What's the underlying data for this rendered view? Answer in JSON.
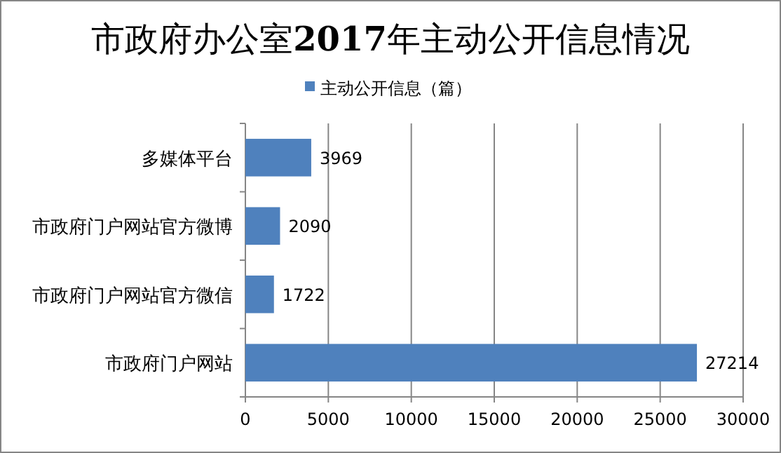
{
  "chart_data": {
    "type": "bar",
    "orientation": "horizontal",
    "title": "市政府办公室**2017**年主动公开信息情况",
    "categories": [
      "多媒体平台",
      "市政府门户网站官方微博",
      "市政府门户网站官方微信",
      "市政府门户网站"
    ],
    "series": [
      {
        "name": "主动公开信息（篇）",
        "color": "#4f81bd",
        "values": [
          3969,
          2090,
          1722,
          27214
        ]
      }
    ],
    "xlim": [
      0,
      30000
    ],
    "xticks": [
      0,
      5000,
      10000,
      15000,
      20000,
      25000,
      30000
    ],
    "grid": "x",
    "legend": "top",
    "data_labels": true
  }
}
